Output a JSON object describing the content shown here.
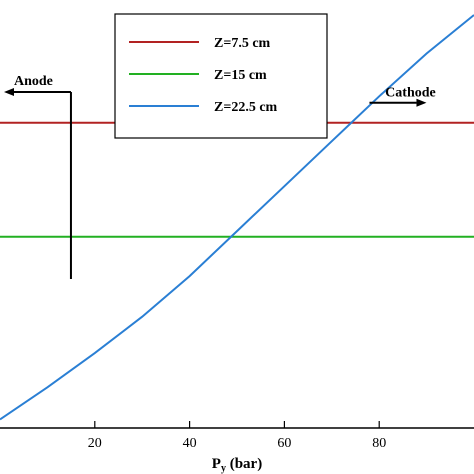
{
  "chart_data": {
    "type": "line",
    "xlabel_main": "P",
    "xlabel_sub": "y",
    "xlabel_unit": " (bar)",
    "xlim": [
      0,
      100
    ],
    "x_ticks": [
      20,
      40,
      60,
      80
    ],
    "ylim": [
      0,
      1
    ],
    "grid": false,
    "legend_placement": "top-center",
    "series": [
      {
        "name": "Z=7.5 cm",
        "color": "#b22222",
        "x": [
          0,
          100
        ],
        "y": [
          0.713,
          0.713
        ]
      },
      {
        "name": "Z=15 cm",
        "color": "#22b022",
        "x": [
          0,
          100
        ],
        "y": [
          0.447,
          0.447
        ]
      },
      {
        "name": "Z=22.5 cm",
        "color": "#2a7fd4",
        "x": [
          0,
          10,
          20,
          30,
          40,
          50,
          60,
          70,
          80,
          90,
          100
        ],
        "y": [
          0.02,
          0.095,
          0.175,
          0.26,
          0.355,
          0.46,
          0.565,
          0.67,
          0.775,
          0.875,
          0.965
        ]
      }
    ],
    "annotations": [
      {
        "text": "Anode",
        "x": 17.5,
        "y": 0.785,
        "direction": "left"
      },
      {
        "text": "Cathode",
        "x": 79,
        "y": 0.76,
        "direction": "right"
      }
    ]
  }
}
